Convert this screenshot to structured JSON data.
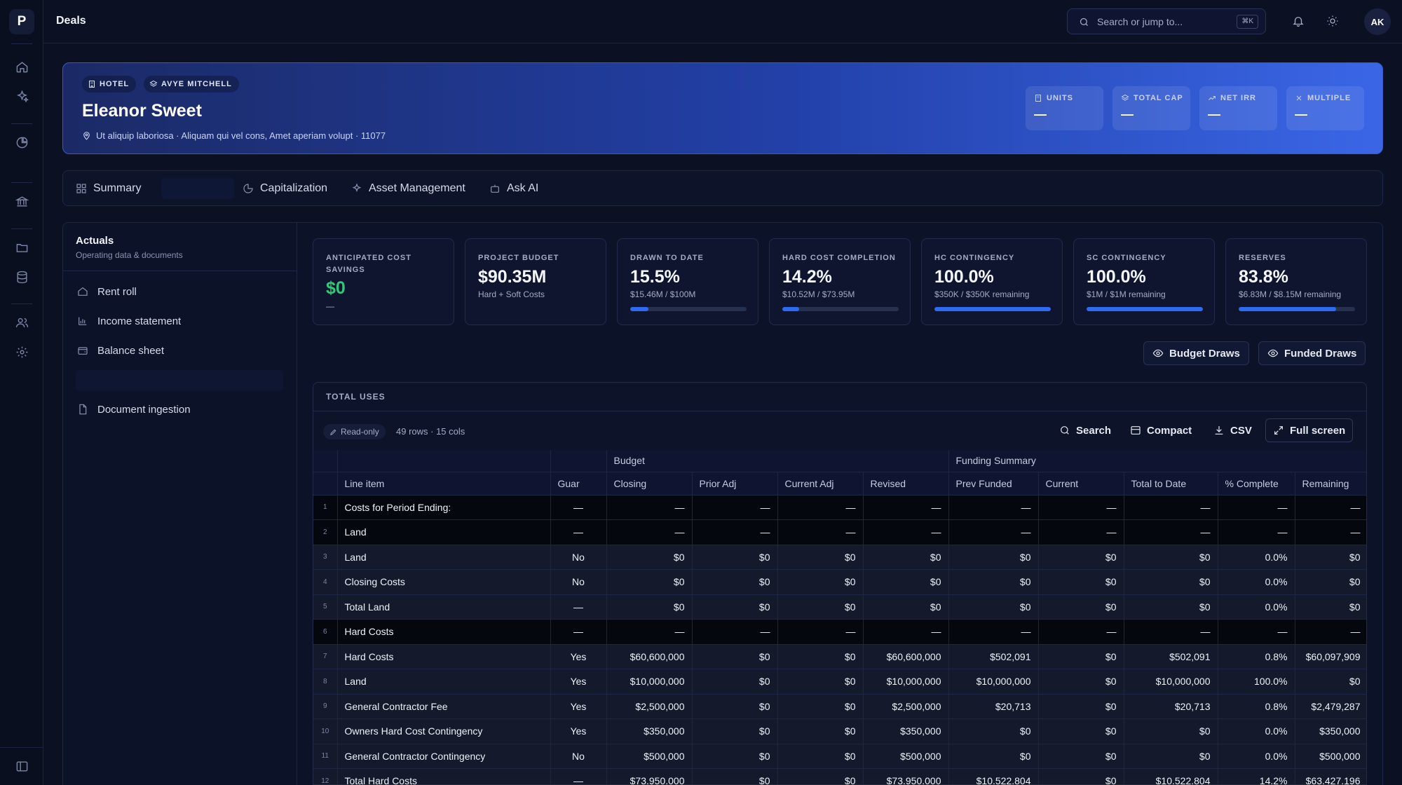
{
  "app": {
    "logo_letter": "P",
    "page_title": "Deals"
  },
  "topbar": {
    "search_placeholder": "Search or jump to...",
    "search_shortcut": "⌘K",
    "avatar_initials": "AK"
  },
  "hero": {
    "tags": [
      "HOTEL",
      "AVYE MITCHELL"
    ],
    "name": "Eleanor Sweet",
    "address": "Ut aliquip laboriosa · Aliquam qui vel cons, Amet aperiam volupt · 11077",
    "stats": [
      {
        "label": "UNITS",
        "value": "—"
      },
      {
        "label": "TOTAL CAP",
        "value": "—"
      },
      {
        "label": "NET IRR",
        "value": "—"
      },
      {
        "label": "MULTIPLE",
        "value": "—"
      }
    ]
  },
  "tabs": [
    {
      "label": "Summary"
    },
    {
      "label": "Capitalization"
    },
    {
      "label": "Asset Management"
    },
    {
      "label": "Ask AI"
    }
  ],
  "panel": {
    "title": "Actuals",
    "subtitle": "Operating data & documents",
    "items": [
      "Rent roll",
      "Income statement",
      "Balance sheet",
      "Document ingestion"
    ]
  },
  "kpis": [
    {
      "label": "ANTICIPATED COST SAVINGS",
      "value": "$0",
      "sub": "—",
      "progress": null
    },
    {
      "label": "PROJECT BUDGET",
      "value": "$90.35M",
      "sub": "Hard + Soft Costs",
      "progress": null
    },
    {
      "label": "DRAWN TO DATE",
      "value": "15.5%",
      "sub": "$15.46M / $100M",
      "progress": 0.155
    },
    {
      "label": "HARD COST COMPLETION",
      "value": "14.2%",
      "sub": "$10.52M / $73.95M",
      "progress": 0.142
    },
    {
      "label": "HC CONTINGENCY",
      "value": "100.0%",
      "sub": "$350K / $350K remaining",
      "progress": 1.0
    },
    {
      "label": "SC CONTINGENCY",
      "value": "100.0%",
      "sub": "$1M / $1M remaining",
      "progress": 1.0
    },
    {
      "label": "RESERVES",
      "value": "83.8%",
      "sub": "$6.83M / $8.15M remaining",
      "progress": 0.838
    }
  ],
  "draw_buttons": {
    "budget": "Budget Draws",
    "funded": "Funded Draws"
  },
  "table": {
    "title": "TOTAL USES",
    "readonly_label": "Read-only",
    "row_count": "49 rows · 15 cols",
    "actions": {
      "search": "Search",
      "compact": "Compact",
      "csv": "CSV",
      "fullscreen": "Full screen"
    },
    "groups": {
      "budget": "Budget",
      "funding": "Funding Summary"
    },
    "columns": [
      "Line item",
      "Guar",
      "Closing",
      "Prior Adj",
      "Current Adj",
      "Revised",
      "Prev Funded",
      "Current",
      "Total to Date",
      "% Complete",
      "Remaining"
    ],
    "rows": [
      {
        "n": "1",
        "style": "dark",
        "cells": [
          "Costs for Period Ending:",
          "—",
          "—",
          "—",
          "—",
          "—",
          "—",
          "—",
          "—",
          "—",
          "—"
        ]
      },
      {
        "n": "2",
        "style": "dark",
        "cells": [
          "Land",
          "—",
          "—",
          "—",
          "—",
          "—",
          "—",
          "—",
          "—",
          "—",
          "—"
        ]
      },
      {
        "n": "3",
        "style": "lite",
        "cells": [
          "Land",
          "No",
          "$0",
          "$0",
          "$0",
          "$0",
          "$0",
          "$0",
          "$0",
          "0.0%",
          "$0"
        ]
      },
      {
        "n": "4",
        "style": "lite",
        "cells": [
          "Closing Costs",
          "No",
          "$0",
          "$0",
          "$0",
          "$0",
          "$0",
          "$0",
          "$0",
          "0.0%",
          "$0"
        ]
      },
      {
        "n": "5",
        "style": "lite",
        "cells": [
          "Total Land",
          "—",
          "$0",
          "$0",
          "$0",
          "$0",
          "$0",
          "$0",
          "$0",
          "0.0%",
          "$0"
        ]
      },
      {
        "n": "6",
        "style": "dark",
        "cells": [
          "Hard Costs",
          "—",
          "—",
          "—",
          "—",
          "—",
          "—",
          "—",
          "—",
          "—",
          "—"
        ]
      },
      {
        "n": "7",
        "style": "lite",
        "cells": [
          "Hard Costs",
          "Yes",
          "$60,600,000",
          "$0",
          "$0",
          "$60,600,000",
          "$502,091",
          "$0",
          "$502,091",
          "0.8%",
          "$60,097,909"
        ]
      },
      {
        "n": "8",
        "style": "lite",
        "cells": [
          "Land",
          "Yes",
          "$10,000,000",
          "$0",
          "$0",
          "$10,000,000",
          "$10,000,000",
          "$0",
          "$10,000,000",
          "100.0%",
          "$0"
        ]
      },
      {
        "n": "9",
        "style": "lite",
        "cells": [
          "General Contractor Fee",
          "Yes",
          "$2,500,000",
          "$0",
          "$0",
          "$2,500,000",
          "$20,713",
          "$0",
          "$20,713",
          "0.8%",
          "$2,479,287"
        ]
      },
      {
        "n": "10",
        "style": "lite",
        "cells": [
          "Owners Hard Cost Contingency",
          "Yes",
          "$350,000",
          "$0",
          "$0",
          "$350,000",
          "$0",
          "$0",
          "$0",
          "0.0%",
          "$350,000"
        ]
      },
      {
        "n": "11",
        "style": "lite",
        "cells": [
          "General Contractor Contingency",
          "No",
          "$500,000",
          "$0",
          "$0",
          "$500,000",
          "$0",
          "$0",
          "$0",
          "0.0%",
          "$500,000"
        ]
      },
      {
        "n": "12",
        "style": "lite",
        "cells": [
          "Total Hard Costs",
          "—",
          "$73,950,000",
          "$0",
          "$0",
          "$73,950,000",
          "$10,522,804",
          "$0",
          "$10,522,804",
          "14.2%",
          "$63,427,196"
        ]
      }
    ]
  },
  "colors": {
    "accent": "#2f6bf2",
    "positive": "#34c77b",
    "background": "#0b1022"
  }
}
